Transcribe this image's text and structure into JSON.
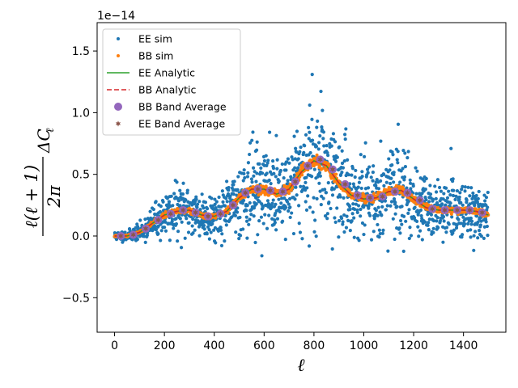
{
  "chart_data": {
    "type": "scatter",
    "title": "",
    "xlabel": "ℓ",
    "ylabel": "ℓ(ℓ + 1)/2π ΔC_ℓ",
    "ylabel_parts": {
      "numerator": "ℓ(ℓ + 1)",
      "denominator": "2π",
      "suffix": "ΔC",
      "subscript": "ℓ"
    },
    "offset_label": "1e−14",
    "xlim": [
      -70,
      1570
    ],
    "ylim": [
      -0.78,
      1.73
    ],
    "x_ticks": [
      0,
      200,
      400,
      600,
      800,
      1000,
      1200,
      1400
    ],
    "x_tick_labels": [
      "0",
      "200",
      "400",
      "600",
      "800",
      "1000",
      "1200",
      "1400"
    ],
    "y_ticks": [
      -0.5,
      0.0,
      0.5,
      1.0,
      1.5
    ],
    "y_tick_labels": [
      "−0.5",
      "0.0",
      "0.5",
      "1.0",
      "1.5"
    ],
    "grid": false,
    "legend_position": "top-left",
    "curve_x": [
      0,
      50,
      100,
      150,
      200,
      250,
      300,
      350,
      400,
      450,
      500,
      550,
      600,
      650,
      700,
      750,
      800,
      850,
      900,
      950,
      1000,
      1050,
      1100,
      1150,
      1200,
      1250,
      1300,
      1350,
      1400,
      1450,
      1500
    ],
    "curve_y": [
      0.0,
      0.0,
      0.03,
      0.1,
      0.17,
      0.2,
      0.21,
      0.17,
      0.16,
      0.2,
      0.31,
      0.38,
      0.38,
      0.34,
      0.38,
      0.52,
      0.61,
      0.57,
      0.43,
      0.33,
      0.3,
      0.31,
      0.36,
      0.37,
      0.3,
      0.23,
      0.21,
      0.21,
      0.21,
      0.2,
      0.17
    ],
    "band_x": [
      25,
      75,
      125,
      175,
      225,
      275,
      325,
      375,
      425,
      475,
      525,
      575,
      625,
      675,
      725,
      775,
      825,
      875,
      925,
      975,
      1025,
      1075,
      1125,
      1175,
      1225,
      1275,
      1325,
      1375,
      1425,
      1475
    ],
    "band_y": [
      0.0,
      0.01,
      0.06,
      0.13,
      0.18,
      0.21,
      0.19,
      0.16,
      0.18,
      0.25,
      0.35,
      0.38,
      0.37,
      0.36,
      0.44,
      0.57,
      0.62,
      0.54,
      0.42,
      0.33,
      0.31,
      0.32,
      0.36,
      0.35,
      0.29,
      0.22,
      0.21,
      0.21,
      0.21,
      0.19
    ],
    "series": [
      {
        "name": "EE sim",
        "kind": "scatter",
        "color": "#1f77b4",
        "n_points": 1500,
        "scatter_seed": 11,
        "noise_base": 0.02,
        "noise_scale": 0.42
      },
      {
        "name": "BB sim",
        "kind": "scatter",
        "color": "#ff7f0e",
        "n_points": 1500,
        "scatter_seed": 23,
        "noise_base": 0.003,
        "noise_scale": 0.035
      },
      {
        "name": "EE Analytic",
        "kind": "line",
        "color": "#2ca02c"
      },
      {
        "name": "BB Analytic",
        "kind": "dashed",
        "color": "#d62728"
      },
      {
        "name": "BB Band Average",
        "kind": "marker",
        "color": "#9467bd"
      },
      {
        "name": "EE Band Average",
        "kind": "marker",
        "color": "#8c564b"
      }
    ]
  }
}
